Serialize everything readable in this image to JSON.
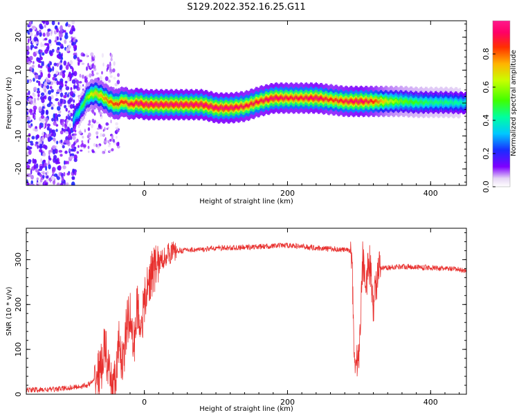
{
  "title": "S129.2022.352.16.25.G11",
  "chart_data": [
    {
      "type": "heatmap",
      "xlabel": "Height of straight line (km)",
      "ylabel": "Frequency (Hz)",
      "xlim": [
        -165,
        450
      ],
      "ylim": [
        -25,
        25
      ],
      "xticks": [
        0,
        200,
        400
      ],
      "yticks": [
        -20,
        -10,
        0,
        10,
        20
      ],
      "colorbar": {
        "label": "Normalized spectral amplitude",
        "range": [
          0,
          1
        ],
        "ticks": [
          0.0,
          0.2,
          0.4,
          0.6,
          0.8
        ]
      },
      "ridge": {
        "x": [
          -100,
          -90,
          -80,
          -70,
          -60,
          -50,
          -40,
          -30,
          -20,
          -10,
          0,
          20,
          40,
          60,
          80,
          100,
          120,
          140,
          160,
          180,
          200,
          220,
          240,
          260,
          280,
          300,
          320,
          340,
          360,
          380,
          400,
          420,
          450
        ],
        "freq": [
          -5,
          -2,
          2,
          3,
          2,
          0.5,
          -0.5,
          0.5,
          -0.5,
          0,
          -0.5,
          -0.5,
          -0.5,
          -0.5,
          -0.5,
          -1.5,
          -1.5,
          -1,
          0.5,
          1.5,
          1.5,
          1.5,
          1.5,
          1,
          0.5,
          0.5,
          0.5,
          0.5,
          0.5,
          0.2,
          0.2,
          0.2,
          0
        ],
        "amplitude": [
          0.35,
          0.45,
          0.6,
          0.7,
          0.75,
          0.8,
          0.85,
          0.85,
          0.9,
          0.95,
          0.95,
          0.95,
          0.95,
          0.95,
          0.95,
          0.95,
          0.95,
          0.9,
          0.9,
          0.95,
          0.9,
          0.9,
          0.95,
          0.85,
          0.9,
          0.95,
          0.85,
          0.65,
          0.55,
          0.5,
          0.45,
          0.45,
          0.4
        ]
      }
    },
    {
      "type": "line",
      "xlabel": "Height of straight line (km)",
      "ylabel": "SNR (10 * v/v)",
      "xlim": [
        -165,
        450
      ],
      "ylim": [
        0,
        370
      ],
      "xticks": [
        0,
        200,
        400
      ],
      "yticks": [
        0,
        100,
        200,
        300
      ],
      "series": [
        {
          "color": "#e8302e",
          "x": [
            -165,
            -140,
            -120,
            -100,
            -80,
            -70,
            -60,
            -55,
            -50,
            -45,
            -40,
            -35,
            -30,
            -25,
            -20,
            -15,
            -10,
            -5,
            0,
            5,
            10,
            20,
            30,
            40,
            60,
            80,
            100,
            120,
            150,
            200,
            250,
            280,
            290,
            293,
            296,
            300,
            305,
            310,
            315,
            320,
            325,
            330,
            340,
            360,
            400,
            440,
            450
          ],
          "y": [
            10,
            10,
            12,
            15,
            20,
            30,
            60,
            110,
            40,
            20,
            30,
            120,
            60,
            150,
            180,
            100,
            200,
            150,
            200,
            240,
            270,
            290,
            310,
            318,
            322,
            322,
            326,
            326,
            328,
            332,
            325,
            322,
            318,
            90,
            70,
            85,
            300,
            260,
            290,
            200,
            260,
            280,
            282,
            285,
            282,
            278,
            275
          ]
        }
      ]
    }
  ],
  "colors": {
    "line": "#e8302e",
    "axis": "#000000"
  }
}
